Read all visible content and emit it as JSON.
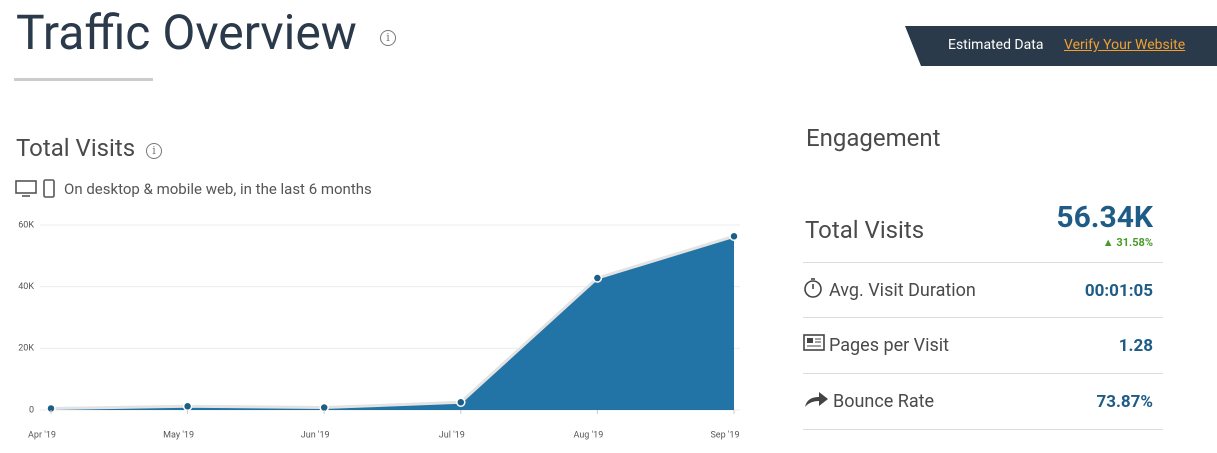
{
  "header": {
    "title": "Traffic Overview",
    "banner_text": "Estimated Data",
    "banner_link": "Verify Your Website"
  },
  "visits": {
    "title": "Total Visits",
    "subtitle": "On desktop & mobile web, in the last 6 months"
  },
  "chart_data": {
    "type": "area",
    "categories": [
      "Apr '19",
      "May '19",
      "Jun '19",
      "Jul '19",
      "Aug '19",
      "Sep '19"
    ],
    "values": [
      500,
      1200,
      800,
      2500,
      42800,
      56340
    ],
    "color": "#2174a5",
    "ylim": [
      0,
      60000
    ],
    "yticks": [
      0,
      {
        "value": 20000,
        "label": "20K"
      },
      {
        "value": 40000,
        "label": "40K"
      },
      {
        "value": 60000,
        "label": "60K"
      }
    ],
    "grid": true
  },
  "engagement": {
    "title": "Engagement",
    "total_visits": {
      "label": "Total Visits",
      "value": "56.34K",
      "change": "31.58%"
    },
    "rows": [
      {
        "label": "Avg. Visit Duration",
        "value": "00:01:05"
      },
      {
        "label": "Pages per Visit",
        "value": "1.28"
      },
      {
        "label": "Bounce Rate",
        "value": "73.87%"
      }
    ]
  }
}
